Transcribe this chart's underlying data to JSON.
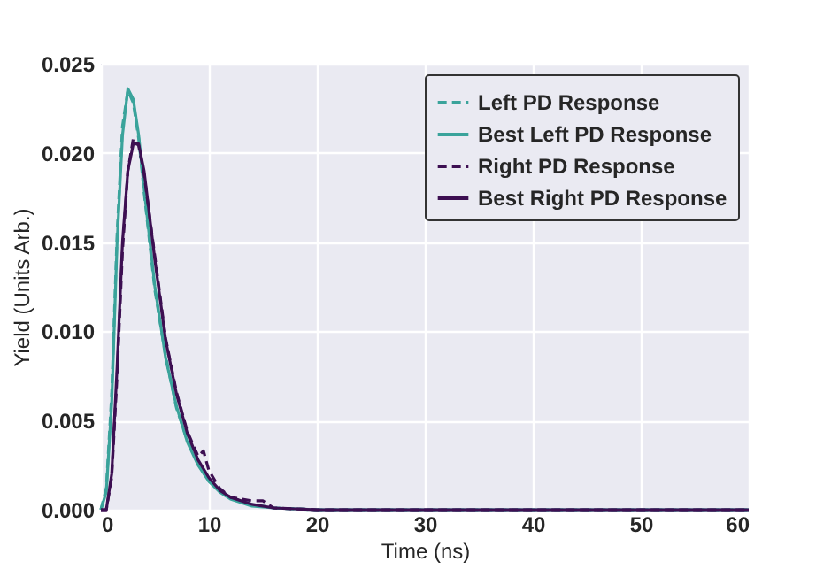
{
  "chart_data": {
    "type": "line",
    "xlabel": "Time (ns)",
    "ylabel": "Yield (Units Arb.)",
    "xlim": [
      0,
      60
    ],
    "xticks": [
      0,
      10,
      20,
      30,
      40,
      50,
      60
    ],
    "ylim": [
      0,
      0.025
    ],
    "yticks": [
      {
        "value": 0,
        "label": "0.000"
      },
      0.005,
      {
        "value": 0.01,
        "label": "0.010"
      },
      0.015,
      {
        "value": 0.02,
        "label": "0.020"
      },
      0.025
    ],
    "grid": true,
    "legend": "top right",
    "marker": "none",
    "series": [
      {
        "name": "Left PD Response",
        "color": "#3aa39b",
        "line_style": "dashed",
        "x": [
          0,
          0.5,
          1,
          1.5,
          2,
          2.5,
          3,
          3.5,
          4,
          5,
          6,
          7,
          8,
          9,
          10,
          11,
          12,
          13,
          14,
          16,
          20,
          60
        ],
        "values": [
          0,
          0.0012,
          0.0065,
          0.0155,
          0.0215,
          0.0235,
          0.0228,
          0.0208,
          0.0178,
          0.0123,
          0.0086,
          0.0057,
          0.0039,
          0.0026,
          0.0016,
          0.0011,
          0.0007,
          0.0005,
          0.0003,
          0.0001,
          0,
          0
        ]
      },
      {
        "name": "Best Left PD Response",
        "color": "#3aa39b",
        "line_style": "solid",
        "x": [
          0,
          0.5,
          1,
          1.5,
          2,
          2.5,
          3,
          3.5,
          4,
          5,
          6,
          7,
          8,
          9,
          10,
          11,
          12,
          14,
          16,
          20,
          60
        ],
        "values": [
          0,
          0.001,
          0.006,
          0.015,
          0.021,
          0.0236,
          0.023,
          0.021,
          0.018,
          0.0125,
          0.0085,
          0.0058,
          0.0038,
          0.0025,
          0.0016,
          0.001,
          0.0006,
          0.0002,
          0.0001,
          0,
          0
        ]
      },
      {
        "name": "Right PD Response",
        "color": "#3d0f52",
        "line_style": "dashed",
        "x": [
          0,
          0.5,
          1,
          1.5,
          2,
          2.5,
          3,
          3.5,
          4,
          5,
          6,
          7,
          8,
          9,
          9.5,
          10,
          11,
          12,
          13,
          14,
          15,
          16,
          20,
          60
        ],
        "values": [
          0,
          0,
          0.0018,
          0.0075,
          0.0145,
          0.019,
          0.0208,
          0.0204,
          0.0188,
          0.0142,
          0.0096,
          0.0066,
          0.0044,
          0.003,
          0.0033,
          0.0022,
          0.0012,
          0.0007,
          0.0006,
          0.0005,
          0.0005,
          0.0001,
          0,
          0
        ]
      },
      {
        "name": "Best Right PD Response",
        "color": "#3d0f52",
        "line_style": "solid",
        "x": [
          0,
          0.5,
          1,
          1.5,
          2,
          2.5,
          3,
          3.5,
          4,
          5,
          6,
          7,
          8,
          9,
          10,
          11,
          12,
          14,
          16,
          20,
          60
        ],
        "values": [
          0,
          0,
          0.002,
          0.008,
          0.015,
          0.019,
          0.0205,
          0.0205,
          0.019,
          0.014,
          0.0095,
          0.0065,
          0.0043,
          0.0028,
          0.0018,
          0.0011,
          0.0007,
          0.0003,
          0.0001,
          0,
          0
        ]
      }
    ]
  }
}
